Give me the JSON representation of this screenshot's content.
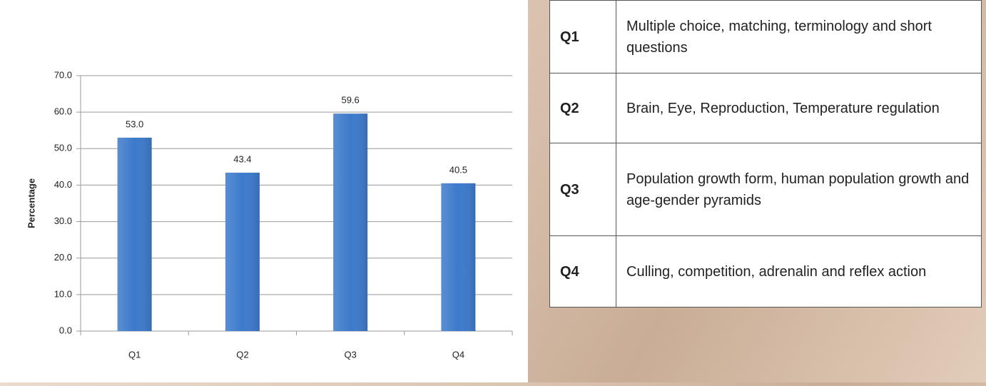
{
  "chart_data": {
    "type": "bar",
    "y_label": "Percentage",
    "categories": [
      "Q1",
      "Q2",
      "Q3",
      "Q4"
    ],
    "values": [
      53.0,
      43.4,
      59.6,
      40.5
    ],
    "value_labels": [
      "53.0",
      "43.4",
      "59.6",
      "40.5"
    ],
    "color": "#3d7acb",
    "ylim": [
      0,
      70
    ],
    "yticks": [
      {
        "value": 0,
        "label": "0.0"
      },
      {
        "value": 10,
        "label": "10.0"
      },
      {
        "value": 20,
        "label": "20.0"
      },
      {
        "value": 30,
        "label": "30.0"
      },
      {
        "value": 40,
        "label": "40.0"
      },
      {
        "value": 50,
        "label": "50.0"
      },
      {
        "value": 60,
        "label": "60.0"
      },
      {
        "value": 70,
        "label": "70.0"
      }
    ],
    "grid": true
  },
  "table": {
    "rows": [
      [
        "Q1",
        "Multiple choice, matching, terminology and short questions"
      ],
      [
        "Q2",
        "Brain, Eye, Reproduction, Temperature regulation"
      ],
      [
        "Q3",
        "Population growth form, human population growth and age-gender pyramids"
      ],
      [
        "Q4",
        "Culling, competition, adrenalin and reflex action"
      ]
    ]
  }
}
